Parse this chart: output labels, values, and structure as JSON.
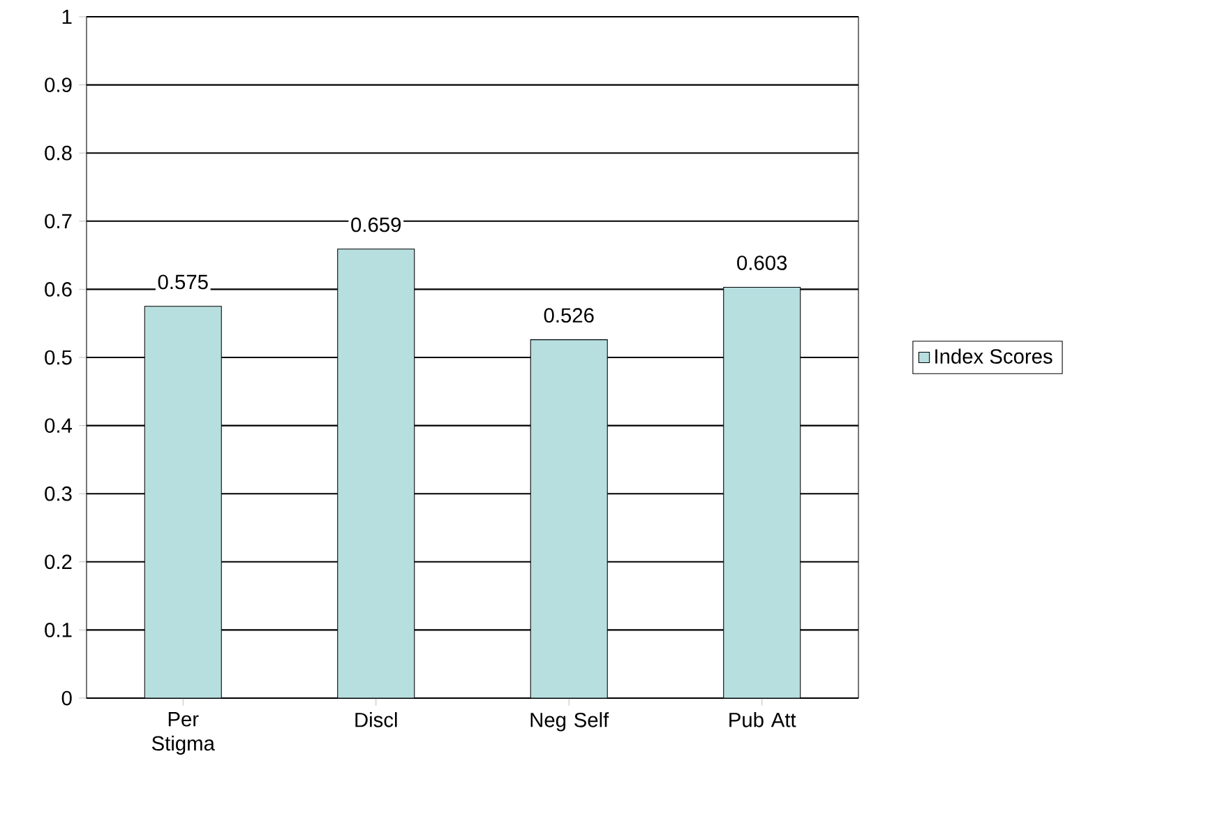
{
  "chart_data": {
    "type": "bar",
    "categories": [
      "Per Stigma",
      "Discl",
      "Neg Self",
      "Pub Att"
    ],
    "series": [
      {
        "name": "Index Scores",
        "color": "#b7dfe0",
        "values": [
          0.575,
          0.659,
          0.526,
          0.603
        ]
      }
    ],
    "ylim": [
      0,
      1
    ],
    "yticks": [
      0,
      0.1,
      0.2,
      0.3,
      0.4,
      0.5,
      0.6,
      0.7,
      0.8,
      0.9,
      1
    ],
    "grid": "y",
    "legend": "right",
    "data_labels": true
  }
}
